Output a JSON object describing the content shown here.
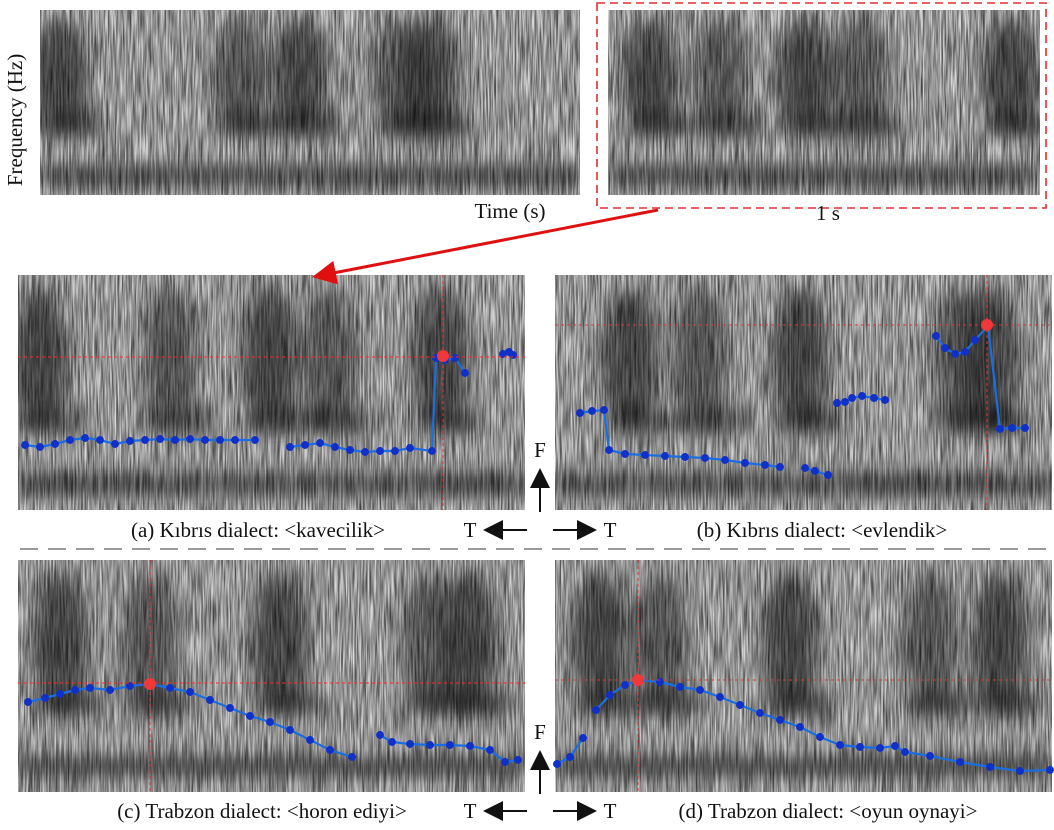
{
  "figure": {
    "top": {
      "y_label": "Frequency (Hz)",
      "x_label": "Time (s)",
      "scale_label": "1 s"
    },
    "panels": [
      {
        "caption": "(a) Kıbrıs dialect: <kavecilik>"
      },
      {
        "caption": "(b) Kıbrıs dialect: <evlendik>"
      },
      {
        "caption": "(c) Trabzon dialect: <horon ediyi>"
      },
      {
        "caption": "(d) Trabzon dialect: <oyun oynayi>"
      }
    ],
    "axis_keys": [
      {
        "frequency": "F",
        "time_left": "T",
        "time_right": "T"
      },
      {
        "frequency": "F",
        "time_left": "T",
        "time_right": "T"
      }
    ]
  }
}
